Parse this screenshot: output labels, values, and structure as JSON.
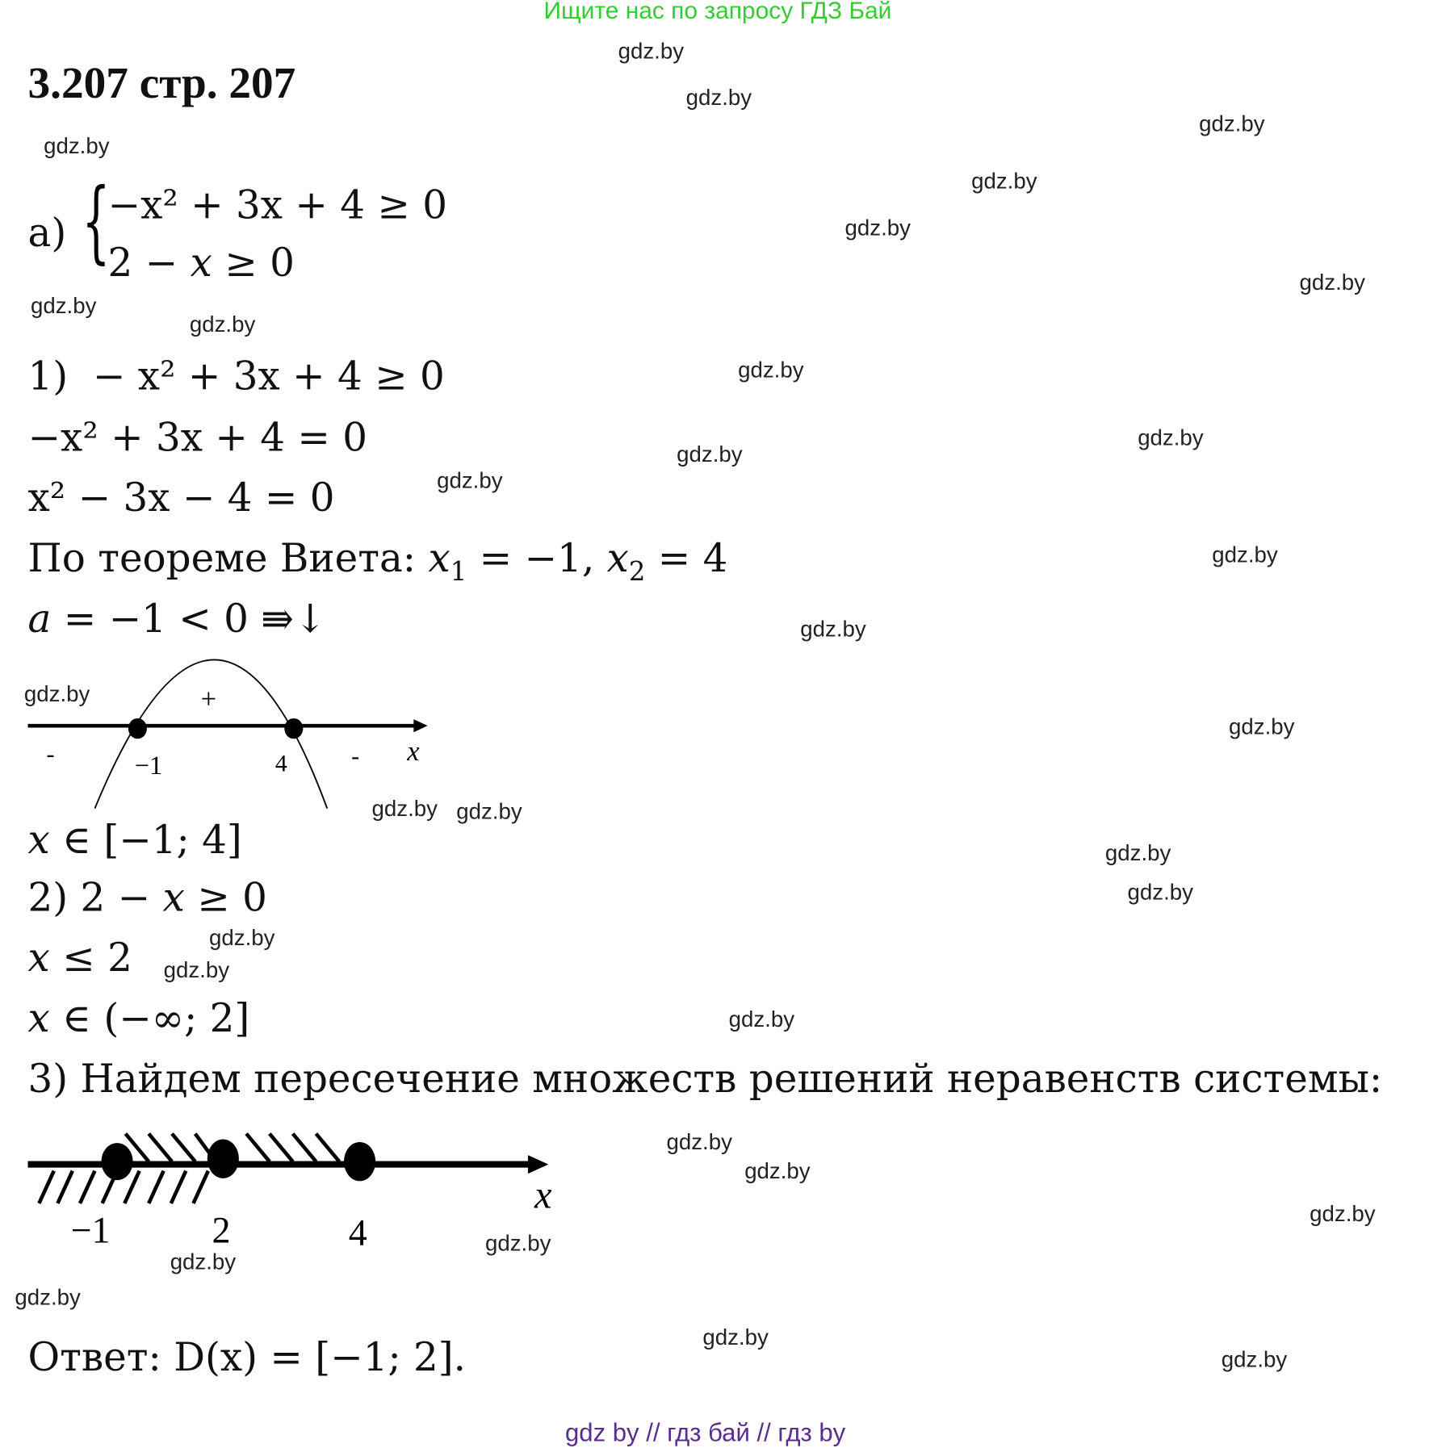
{
  "top_banner": "Ищите нас по запросу ГДЗ Бай",
  "title": "3.207 стр. 207",
  "watermark": "gdz.by",
  "part_a": {
    "label": "а)",
    "eq1": "−x² + 3x + 4 ≥ 0",
    "eq2": "2 − x ≥ 0"
  },
  "step1": {
    "label": "1)",
    "line1": "− x² + 3x + 4 ≥ 0",
    "line2": "−x² + 3x + 4 = 0",
    "line3": "x² − 3x − 4 = 0",
    "vieta_text": "По теореме Виета:",
    "vieta_roots": "x₁ = −1, x₂ = 4",
    "leading": "a = −1 < 0 ⇛↓",
    "result": "x ∈ [−1; 4]"
  },
  "graph1": {
    "signs": [
      "-",
      "+",
      "-"
    ],
    "ticks": [
      "−1",
      "4"
    ],
    "axis": "x"
  },
  "step2": {
    "line1": "2) 2 − x ≥ 0",
    "line2": "x ≤ 2",
    "result": "x ∈ (−∞; 2]"
  },
  "step3": {
    "text": "3) Найдем пересечение множеств решений неравенств системы:"
  },
  "graph2": {
    "ticks": [
      "−1",
      "2",
      "4"
    ],
    "axis": "x"
  },
  "answer": {
    "label": "Ответ:",
    "value": "D(x) = [−1; 2]."
  },
  "footer": "gdz by  //  гдз бай  //  гдз by",
  "colors": {
    "banner": "#33cc33",
    "footer": "#5b2c8f"
  }
}
